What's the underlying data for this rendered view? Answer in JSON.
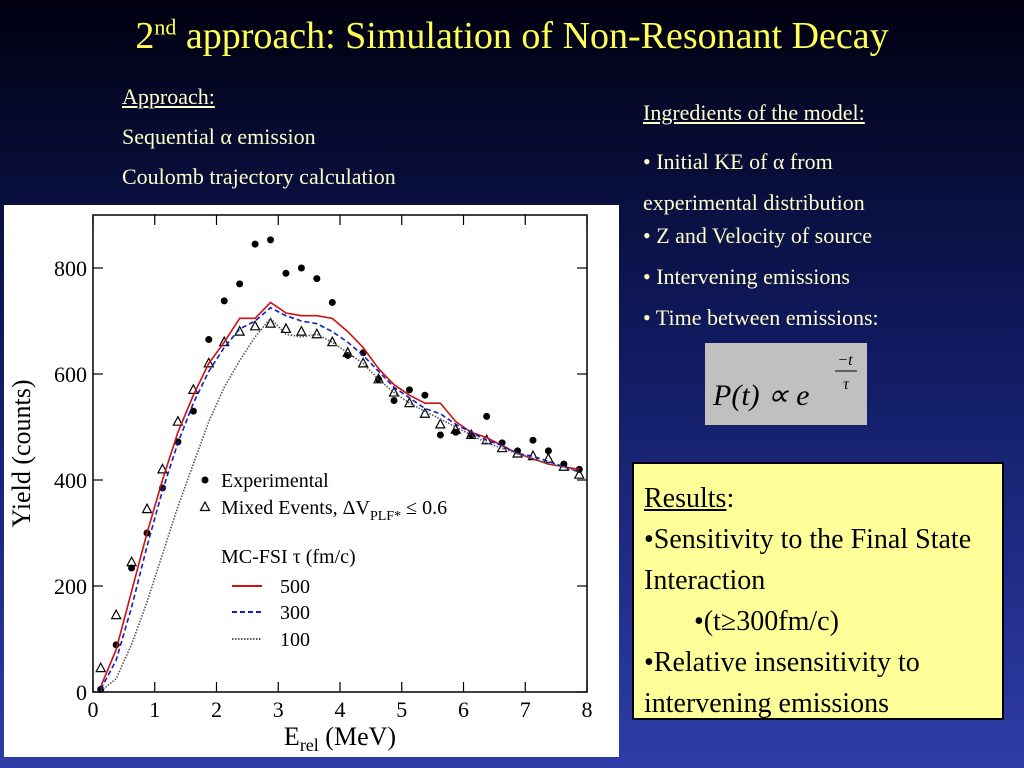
{
  "title": [
    "2",
    "nd",
    " approach: Simulation of Non-Resonant Decay"
  ],
  "approach": {
    "heading": "Approach:",
    "items": [
      "Sequential α emission",
      "Coulomb trajectory calculation"
    ]
  },
  "ingredients": {
    "heading": "Ingredients of the model:",
    "items": [
      "• Initial KE of α from experimental distribution",
      "• Z and Velocity of source",
      "• Intervening emissions",
      "• Time between emissions:"
    ],
    "formula": {
      "lhs": "P(t) ∝ e",
      "numerator": "−t",
      "denominator": "τ"
    }
  },
  "results": {
    "heading": "Results",
    "heading_suffix": ":",
    "items": [
      "•Sensitivity to the Final State Interaction",
      "•(t≥300fm/c)",
      "•Relative insensitivity to intervening emissions"
    ]
  },
  "chart_data": {
    "type": "line",
    "y_label": "Yield (counts)",
    "x_label": [
      "E",
      "rel",
      " (MeV)"
    ],
    "legend_title": "MC-FSI τ (fm/c)",
    "xlim": [
      0,
      8
    ],
    "xticks": [
      0,
      1,
      2,
      3,
      4,
      5,
      6,
      7,
      8
    ],
    "ylim": [
      0,
      900
    ],
    "yticks": [
      0,
      200,
      400,
      600,
      800
    ],
    "x": [
      0.125,
      0.375,
      0.625,
      0.875,
      1.125,
      1.375,
      1.625,
      1.875,
      2.125,
      2.375,
      2.625,
      2.875,
      3.125,
      3.375,
      3.625,
      3.875,
      4.125,
      4.375,
      4.625,
      4.875,
      5.125,
      5.375,
      5.625,
      5.875,
      6.125,
      6.375,
      6.625,
      6.875,
      7.125,
      7.375,
      7.625,
      7.875
    ],
    "series": [
      {
        "name": [
          "Experimental"
        ],
        "marker": "circle",
        "color": "#000000",
        "values": [
          5,
          89,
          234,
          300,
          385,
          472,
          530,
          665,
          738,
          770,
          845,
          853,
          790,
          800,
          780,
          735,
          635,
          640,
          590,
          550,
          570,
          560,
          485,
          490,
          485,
          520,
          470,
          455,
          475,
          455,
          430,
          420
        ]
      },
      {
        "name": [
          "Mixed Events, ΔV",
          "PLF*",
          " ≤ 0.6"
        ],
        "marker": "triangle",
        "color": "#000000",
        "values": [
          45,
          145,
          245,
          345,
          420,
          510,
          570,
          620,
          660,
          680,
          690,
          695,
          685,
          680,
          675,
          660,
          640,
          620,
          590,
          565,
          545,
          525,
          505,
          495,
          485,
          475,
          460,
          450,
          445,
          440,
          425,
          410
        ]
      },
      {
        "name": [
          "500"
        ],
        "dash": "none",
        "color": "#d01010",
        "values": [
          10,
          80,
          190,
          300,
          400,
          490,
          560,
          620,
          660,
          705,
          705,
          735,
          715,
          710,
          710,
          705,
          680,
          650,
          610,
          580,
          560,
          545,
          545,
          510,
          490,
          480,
          465,
          450,
          440,
          430,
          425,
          420
        ]
      },
      {
        "name": [
          "300"
        ],
        "dash": "5,3",
        "color": "#1020c0",
        "values": [
          5,
          60,
          160,
          275,
          380,
          470,
          545,
          605,
          650,
          685,
          700,
          725,
          710,
          700,
          695,
          680,
          660,
          635,
          605,
          575,
          555,
          535,
          525,
          505,
          490,
          475,
          465,
          450,
          445,
          435,
          425,
          415
        ]
      },
      {
        "name": [
          "100"
        ],
        "dash": "1.5,1.5",
        "color": "#555555",
        "values": [
          2,
          25,
          90,
          170,
          260,
          350,
          430,
          510,
          575,
          625,
          670,
          705,
          675,
          670,
          675,
          660,
          640,
          620,
          590,
          565,
          545,
          530,
          515,
          500,
          485,
          470,
          460,
          450,
          440,
          430,
          425,
          415
        ]
      }
    ]
  }
}
